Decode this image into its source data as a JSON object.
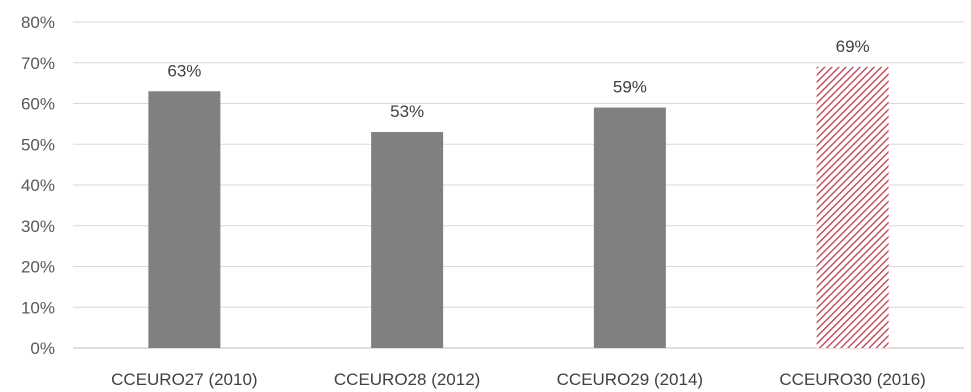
{
  "chart_data": {
    "type": "bar",
    "categories": [
      "CCEURO27 (2010)",
      "CCEURO28 (2012)",
      "CCEURO29 (2014)",
      "CCEURO30 (2016)"
    ],
    "values": [
      63,
      53,
      59,
      69
    ],
    "data_labels": [
      "63%",
      "53%",
      "59%",
      "69%"
    ],
    "title": "",
    "xlabel": "",
    "ylabel": "",
    "ylim": [
      0,
      80
    ],
    "y_ticks": [
      0,
      10,
      20,
      30,
      40,
      50,
      60,
      70,
      80
    ],
    "y_tick_labels": [
      "0%",
      "10%",
      "20%",
      "30%",
      "40%",
      "50%",
      "60%",
      "70%",
      "80%"
    ],
    "grid": true,
    "legend": "none",
    "colors": {
      "bar": "#808080",
      "highlight_hatch": "#c0394b",
      "grid": "#d9d9d9",
      "axis": "#bfbfbf"
    },
    "bar_styles": [
      "solid",
      "solid",
      "solid",
      "hatched"
    ]
  }
}
